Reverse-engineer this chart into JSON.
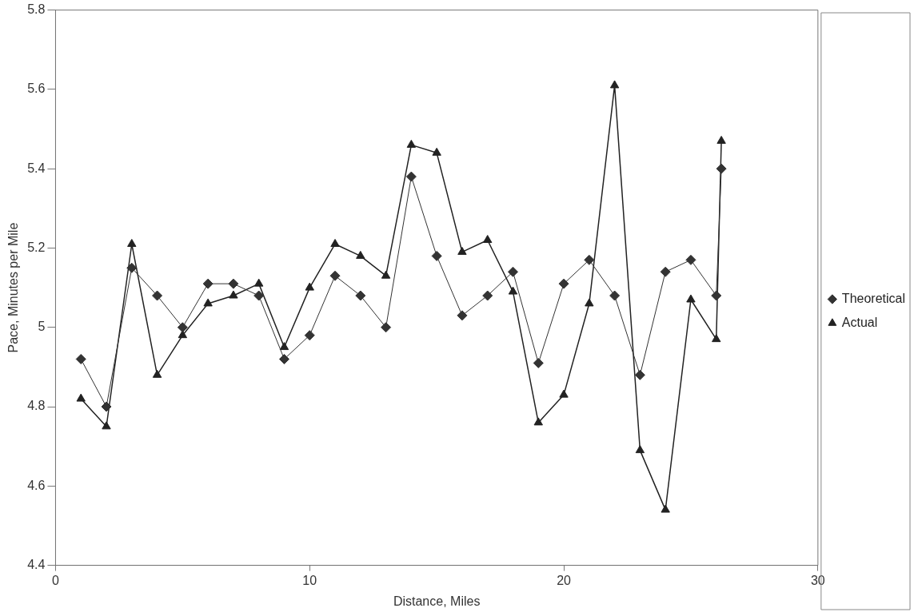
{
  "chart_data": {
    "type": "line",
    "xlabel": "Distance, Miles",
    "ylabel": "Pace, Minutes per Mile",
    "xlim": [
      0,
      30
    ],
    "xticks": [
      0,
      10,
      20,
      30
    ],
    "ylim": [
      4.4,
      5.8
    ],
    "yticks": [
      4.4,
      4.6,
      4.8,
      5,
      5.2,
      5.4,
      5.6,
      5.8
    ],
    "grid": false,
    "legend": "right",
    "series": [
      {
        "name": "Theoretical",
        "color": "#333333",
        "marker": "diamond",
        "x": [
          1,
          2,
          3,
          4,
          5,
          6,
          7,
          8,
          9,
          10,
          11,
          12,
          13,
          14,
          15,
          16,
          17,
          18,
          19,
          20,
          21,
          22,
          23,
          24,
          25,
          26,
          26.2
        ],
        "values": [
          4.92,
          4.8,
          5.15,
          5.08,
          5.0,
          5.11,
          5.11,
          5.08,
          4.92,
          4.98,
          5.13,
          5.08,
          5.0,
          5.38,
          5.18,
          5.03,
          5.08,
          5.14,
          4.91,
          5.11,
          5.17,
          5.08,
          4.88,
          5.14,
          5.17,
          5.08,
          5.4
        ]
      },
      {
        "name": "Actual",
        "color": "#222222",
        "marker": "triangle",
        "x": [
          1,
          2,
          3,
          4,
          5,
          6,
          7,
          8,
          9,
          10,
          11,
          12,
          13,
          14,
          15,
          16,
          17,
          18,
          19,
          20,
          21,
          22,
          23,
          24,
          25,
          26,
          26.2
        ],
        "values": [
          4.82,
          4.75,
          5.21,
          4.88,
          4.98,
          5.06,
          5.08,
          5.11,
          4.95,
          5.1,
          5.21,
          5.18,
          5.13,
          5.46,
          5.44,
          5.19,
          5.22,
          5.09,
          4.76,
          4.83,
          5.06,
          5.61,
          4.69,
          4.54,
          5.07,
          4.97,
          5.47
        ]
      }
    ]
  }
}
